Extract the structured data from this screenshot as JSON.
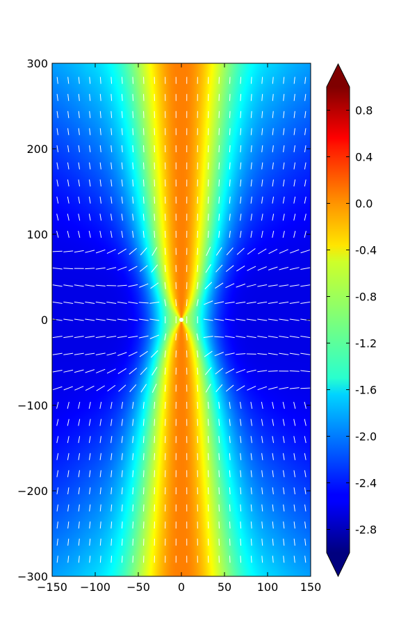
{
  "chart_data": {
    "type": "heatmap",
    "description_kind": "scalar field with quiver (arrow) overlay and colorbar",
    "title": "",
    "xlabel": "",
    "ylabel": "",
    "xlim": [
      -150,
      150
    ],
    "ylim": [
      -300,
      300
    ],
    "x_ticks": [
      -150,
      -100,
      -50,
      0,
      50,
      100,
      150
    ],
    "x_tick_labels": [
      "−150",
      "−100",
      "−50",
      "0",
      "50",
      "100",
      "150"
    ],
    "y_ticks": [
      300,
      200,
      100,
      0,
      -100,
      -200,
      -300
    ],
    "y_tick_labels": [
      "300",
      "200",
      "100",
      "0",
      "−100",
      "−200",
      "−300"
    ],
    "colormap": "jet",
    "colorbar": {
      "range": [
        -3.0,
        1.0
      ],
      "extend": "both",
      "ticks": [
        0.8,
        0.4,
        0.0,
        -0.4,
        -0.8,
        -1.2,
        -1.6,
        -2.0,
        -2.4,
        -2.8
      ],
      "tick_labels": [
        "0.8",
        "0.4",
        "0.0",
        "-0.4",
        "-0.8",
        "-1.2",
        "-1.6",
        "-2.0",
        "-2.4",
        "-2.8"
      ]
    },
    "field": {
      "description": "log10 magnitude pattern, max along the vertical axis (~0.0), min in the side lobes (~-2.6)",
      "min_value": -2.6,
      "max_value": 0.0,
      "center": [
        0,
        0
      ]
    },
    "quiver": {
      "color": "#ffffff",
      "x_step": 12.5,
      "y_step": 20,
      "x_range": [
        -143.75,
        143.75
      ],
      "y_range": [
        -280,
        280
      ]
    },
    "source_marker": {
      "x": 0,
      "y": 0,
      "color": "#ffffff"
    }
  }
}
